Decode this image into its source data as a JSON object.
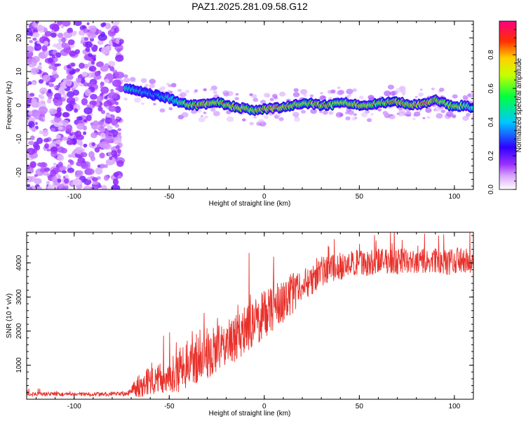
{
  "title": "PAZ1.2025.281.09.58.G12",
  "chart_data": [
    {
      "type": "heatmap",
      "title": "PAZ1.2025.281.09.58.G12",
      "xlabel": "Height of straight line (km)",
      "ylabel": "Frequency (Hz)",
      "xlim": [
        -125,
        110
      ],
      "ylim": [
        -25,
        25
      ],
      "x_ticks": [
        -100,
        -50,
        0,
        50,
        100
      ],
      "y_ticks": [
        -20,
        -10,
        0,
        10,
        20
      ],
      "x_tick_labels": [
        "-100",
        "-50",
        "0",
        "50",
        "100"
      ],
      "y_tick_labels": [
        "-20",
        "-10",
        "0",
        "10",
        "20"
      ],
      "colorbar": {
        "label": "Normalized spectral amplitude",
        "range": [
          0,
          1
        ],
        "ticks": [
          0.0,
          0.2,
          0.4,
          0.6,
          0.8
        ],
        "tick_labels": [
          "0.0",
          "0.2",
          "0.4",
          "0.6",
          "0.8"
        ]
      },
      "noise_region_x": [
        -125,
        -75
      ],
      "ridge": {
        "x": [
          -73,
          -65,
          -57,
          -50,
          -45,
          -40,
          -35,
          -30,
          -25,
          -20,
          -15,
          -10,
          -5,
          0,
          5,
          10,
          15,
          20,
          25,
          30,
          35,
          40,
          45,
          50,
          55,
          60,
          65,
          70,
          75,
          80,
          85,
          90,
          95,
          100,
          105,
          110
        ],
        "y": [
          5,
          4,
          3,
          2,
          1,
          0,
          0,
          0.5,
          1,
          0,
          -0.5,
          -1,
          -1.5,
          -1,
          -1,
          -0.5,
          0,
          0.5,
          0.5,
          0,
          0,
          1,
          0.5,
          0,
          0,
          0.5,
          1,
          1,
          0.5,
          0,
          0.5,
          1.5,
          0.5,
          -0.5,
          0,
          -1
        ],
        "amplitude": [
          0.55,
          0.45,
          0.4,
          0.5,
          0.6,
          0.75,
          0.8,
          0.85,
          0.8,
          0.8,
          0.85,
          0.8,
          0.75,
          0.85,
          0.9,
          0.85,
          0.8,
          0.75,
          0.8,
          0.85,
          0.8,
          0.75,
          0.8,
          0.85,
          0.8,
          0.75,
          0.8,
          0.85,
          0.8,
          0.85,
          0.9,
          0.8,
          0.75,
          0.8,
          0.7,
          0.5
        ]
      }
    },
    {
      "type": "line",
      "xlabel": "Height of straight line (km)",
      "ylabel": "SNR (10 * v/v)",
      "xlim": [
        -125,
        110
      ],
      "ylim": [
        0,
        4900
      ],
      "x_ticks": [
        -100,
        -50,
        0,
        50,
        100
      ],
      "y_ticks": [
        1000,
        2000,
        3000,
        4000
      ],
      "x_tick_labels": [
        "-100",
        "-50",
        "0",
        "50",
        "100"
      ],
      "y_tick_labels": [
        "1000",
        "2000",
        "3000",
        "4000"
      ],
      "series": [
        {
          "name": "SNR",
          "color": "#e8302a",
          "x": [
            -125,
            -110,
            -100,
            -90,
            -80,
            -75,
            -72,
            -70,
            -65,
            -60,
            -55,
            -50,
            -45,
            -40,
            -35,
            -30,
            -25,
            -20,
            -15,
            -10,
            -5,
            0,
            5,
            10,
            15,
            20,
            25,
            30,
            35,
            40,
            45,
            50,
            55,
            60,
            65,
            70,
            75,
            80,
            85,
            90,
            95,
            100,
            105,
            110
          ],
          "y": [
            150,
            150,
            140,
            150,
            150,
            150,
            160,
            250,
            450,
            550,
            600,
            700,
            850,
            1000,
            1150,
            1300,
            1450,
            1600,
            1800,
            2000,
            2250,
            2500,
            2700,
            2900,
            3100,
            3300,
            3550,
            3750,
            3850,
            3900,
            3950,
            4000,
            4000,
            4050,
            4050,
            4050,
            4050,
            4000,
            4050,
            4050,
            4000,
            4050,
            4050,
            4050
          ],
          "noise_amplitude": [
            60,
            60,
            60,
            60,
            60,
            60,
            60,
            150,
            400,
            400,
            450,
            500,
            650,
            650,
            650,
            700,
            700,
            700,
            700,
            750,
            750,
            750,
            700,
            650,
            600,
            550,
            500,
            450,
            400,
            400,
            400,
            400,
            380,
            380,
            380,
            380,
            380,
            380,
            380,
            380,
            380,
            380,
            380,
            380
          ]
        }
      ]
    }
  ]
}
